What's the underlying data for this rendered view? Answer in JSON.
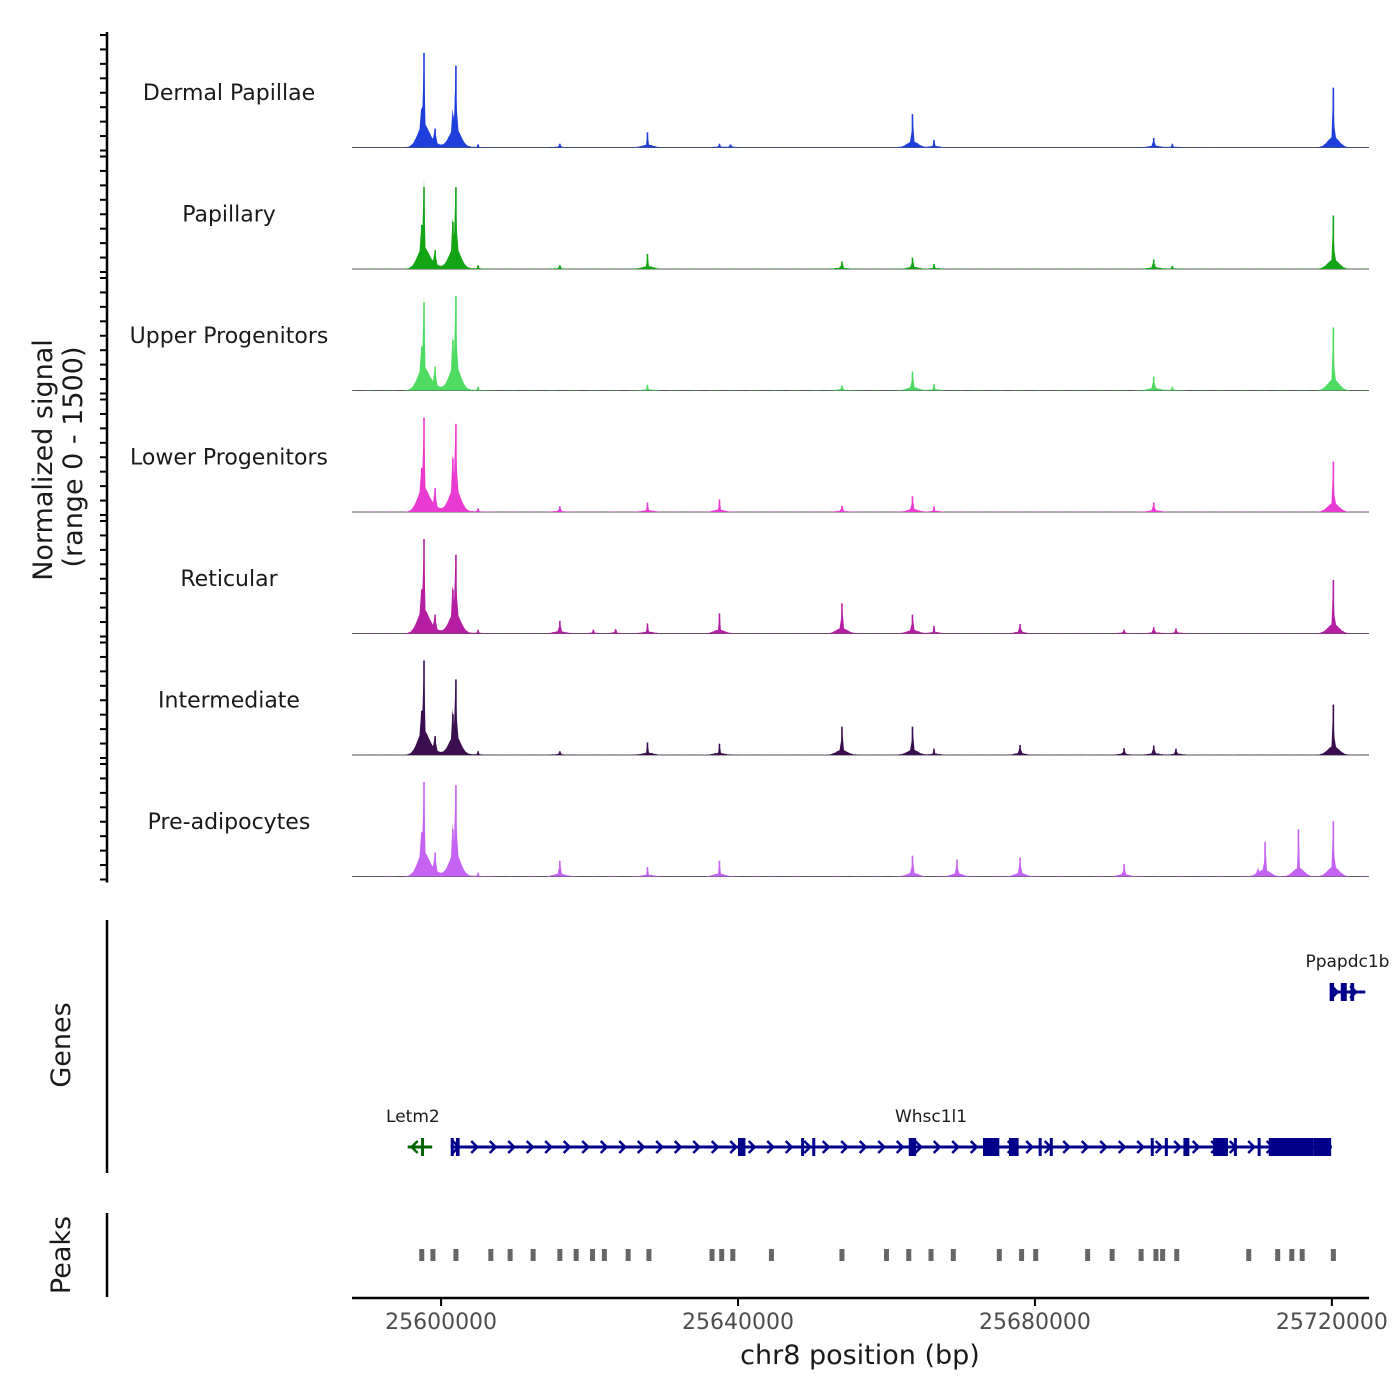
{
  "chart_data": {
    "type": "area",
    "title": "",
    "chromosome": "chr8",
    "xlabel": "chr8 position (bp)",
    "xlim": [
      25588000,
      25725000
    ],
    "x_ticks": [
      25600000,
      25640000,
      25680000,
      25720000
    ],
    "x_tick_labels": [
      "25600000",
      "25640000",
      "25680000",
      "25720000"
    ],
    "signal_axis_label": "Normalized signal\n(range 0 - 1500)",
    "signal_range": [
      0,
      1500
    ],
    "genes_label": "Genes",
    "peaks_label": "Peaks",
    "tracks": [
      {
        "name": "Dermal Papillae",
        "color": "#1f3fdb",
        "peaks": [
          {
            "pos": 25597700,
            "value": 1500
          },
          {
            "pos": 25597400,
            "value": 600
          },
          {
            "pos": 25599200,
            "value": 300
          },
          {
            "pos": 25602000,
            "value": 1300
          },
          {
            "pos": 25601600,
            "value": 500
          },
          {
            "pos": 25605000,
            "value": 50
          },
          {
            "pos": 25616000,
            "value": 60
          },
          {
            "pos": 25627800,
            "value": 240
          },
          {
            "pos": 25637500,
            "value": 60
          },
          {
            "pos": 25639000,
            "value": 50
          },
          {
            "pos": 25663500,
            "value": 530
          },
          {
            "pos": 25666400,
            "value": 120
          },
          {
            "pos": 25696000,
            "value": 150
          },
          {
            "pos": 25698500,
            "value": 60
          },
          {
            "pos": 25720200,
            "value": 950
          }
        ]
      },
      {
        "name": "Papillary",
        "color": "#14a514",
        "peaks": [
          {
            "pos": 25597700,
            "value": 1300
          },
          {
            "pos": 25597400,
            "value": 700
          },
          {
            "pos": 25599200,
            "value": 300
          },
          {
            "pos": 25602000,
            "value": 1300
          },
          {
            "pos": 25601600,
            "value": 750
          },
          {
            "pos": 25605000,
            "value": 60
          },
          {
            "pos": 25616000,
            "value": 60
          },
          {
            "pos": 25627800,
            "value": 240
          },
          {
            "pos": 25654000,
            "value": 120
          },
          {
            "pos": 25663500,
            "value": 180
          },
          {
            "pos": 25666400,
            "value": 80
          },
          {
            "pos": 25696000,
            "value": 150
          },
          {
            "pos": 25698500,
            "value": 50
          },
          {
            "pos": 25720200,
            "value": 850
          }
        ]
      },
      {
        "name": "Upper Progenitors",
        "color": "#4fdb62",
        "peaks": [
          {
            "pos": 25597700,
            "value": 1400
          },
          {
            "pos": 25597400,
            "value": 700
          },
          {
            "pos": 25599200,
            "value": 380
          },
          {
            "pos": 25602000,
            "value": 1500
          },
          {
            "pos": 25601600,
            "value": 800
          },
          {
            "pos": 25605000,
            "value": 60
          },
          {
            "pos": 25627800,
            "value": 90
          },
          {
            "pos": 25654000,
            "value": 80
          },
          {
            "pos": 25663500,
            "value": 300
          },
          {
            "pos": 25666400,
            "value": 100
          },
          {
            "pos": 25696000,
            "value": 220
          },
          {
            "pos": 25698500,
            "value": 60
          },
          {
            "pos": 25720200,
            "value": 1000
          }
        ]
      },
      {
        "name": "Lower Progenitors",
        "color": "#e93ad2",
        "peaks": [
          {
            "pos": 25597700,
            "value": 1500
          },
          {
            "pos": 25597400,
            "value": 700
          },
          {
            "pos": 25599200,
            "value": 380
          },
          {
            "pos": 25602000,
            "value": 1400
          },
          {
            "pos": 25601600,
            "value": 850
          },
          {
            "pos": 25605000,
            "value": 60
          },
          {
            "pos": 25616000,
            "value": 90
          },
          {
            "pos": 25627800,
            "value": 150
          },
          {
            "pos": 25637500,
            "value": 200
          },
          {
            "pos": 25654000,
            "value": 100
          },
          {
            "pos": 25663500,
            "value": 250
          },
          {
            "pos": 25666400,
            "value": 90
          },
          {
            "pos": 25696000,
            "value": 150
          },
          {
            "pos": 25720200,
            "value": 800
          }
        ]
      },
      {
        "name": "Reticular",
        "color": "#b51ea2",
        "peaks": [
          {
            "pos": 25597700,
            "value": 1500
          },
          {
            "pos": 25597400,
            "value": 700
          },
          {
            "pos": 25599200,
            "value": 300
          },
          {
            "pos": 25602000,
            "value": 1250
          },
          {
            "pos": 25601600,
            "value": 700
          },
          {
            "pos": 25605000,
            "value": 60
          },
          {
            "pos": 25616000,
            "value": 200
          },
          {
            "pos": 25620500,
            "value": 60
          },
          {
            "pos": 25623500,
            "value": 70
          },
          {
            "pos": 25627800,
            "value": 160
          },
          {
            "pos": 25637500,
            "value": 320
          },
          {
            "pos": 25654000,
            "value": 480
          },
          {
            "pos": 25663500,
            "value": 300
          },
          {
            "pos": 25666400,
            "value": 120
          },
          {
            "pos": 25678000,
            "value": 150
          },
          {
            "pos": 25692000,
            "value": 60
          },
          {
            "pos": 25696000,
            "value": 100
          },
          {
            "pos": 25699000,
            "value": 80
          },
          {
            "pos": 25720200,
            "value": 850
          }
        ]
      },
      {
        "name": "Intermediate",
        "color": "#3b0f4f",
        "peaks": [
          {
            "pos": 25597700,
            "value": 1500
          },
          {
            "pos": 25597400,
            "value": 700
          },
          {
            "pos": 25599200,
            "value": 300
          },
          {
            "pos": 25602000,
            "value": 1200
          },
          {
            "pos": 25601600,
            "value": 650
          },
          {
            "pos": 25605000,
            "value": 60
          },
          {
            "pos": 25616000,
            "value": 60
          },
          {
            "pos": 25627800,
            "value": 200
          },
          {
            "pos": 25637500,
            "value": 180
          },
          {
            "pos": 25654000,
            "value": 450
          },
          {
            "pos": 25663500,
            "value": 450
          },
          {
            "pos": 25666400,
            "value": 100
          },
          {
            "pos": 25678000,
            "value": 160
          },
          {
            "pos": 25692000,
            "value": 110
          },
          {
            "pos": 25696000,
            "value": 150
          },
          {
            "pos": 25699000,
            "value": 100
          },
          {
            "pos": 25720200,
            "value": 800
          }
        ]
      },
      {
        "name": "Pre-adipocytes",
        "color": "#c463f2",
        "peaks": [
          {
            "pos": 25597700,
            "value": 1500
          },
          {
            "pos": 25597400,
            "value": 700
          },
          {
            "pos": 25599200,
            "value": 380
          },
          {
            "pos": 25602000,
            "value": 1450
          },
          {
            "pos": 25601600,
            "value": 750
          },
          {
            "pos": 25605000,
            "value": 60
          },
          {
            "pos": 25616000,
            "value": 250
          },
          {
            "pos": 25627800,
            "value": 150
          },
          {
            "pos": 25637500,
            "value": 250
          },
          {
            "pos": 25663500,
            "value": 330
          },
          {
            "pos": 25669500,
            "value": 270
          },
          {
            "pos": 25678000,
            "value": 300
          },
          {
            "pos": 25692000,
            "value": 200
          },
          {
            "pos": 25711000,
            "value": 550
          },
          {
            "pos": 25715500,
            "value": 750
          },
          {
            "pos": 25710000,
            "value": 100
          },
          {
            "pos": 25720200,
            "value": 880
          }
        ]
      }
    ],
    "genes": [
      {
        "name": "Ppapdc1b",
        "color": "#00008b",
        "strand": "+",
        "start": 25719700,
        "end": 25724500,
        "row": 1,
        "exons": [
          [
            25719700,
            25720300
          ],
          [
            25721200,
            25722000
          ],
          [
            25722500,
            25723000
          ]
        ]
      },
      {
        "name": "Letm2",
        "color": "#006400",
        "strand": "-",
        "start": 25595500,
        "end": 25598800,
        "row": 2,
        "exons": [
          [
            25597300,
            25597700
          ]
        ]
      },
      {
        "name": "Whsc1l1",
        "color": "#00008b",
        "strand": "+",
        "start": 25601300,
        "end": 25720000,
        "row": 2,
        "exons": [
          [
            25601300,
            25601700
          ],
          [
            25602000,
            25602500
          ],
          [
            25640000,
            25641000
          ],
          [
            25648500,
            25648700
          ],
          [
            25650000,
            25650200
          ],
          [
            25663000,
            25664000
          ],
          [
            25673000,
            25675200
          ],
          [
            25676500,
            25677800
          ],
          [
            25680500,
            25680800
          ],
          [
            25682000,
            25682300
          ],
          [
            25695600,
            25695900
          ],
          [
            25697500,
            25697700
          ],
          [
            25700000,
            25700800
          ],
          [
            25704000,
            25706000
          ],
          [
            25706800,
            25707000
          ],
          [
            25710000,
            25710300
          ],
          [
            25711500,
            25717500
          ],
          [
            25717500,
            25719900
          ]
        ]
      }
    ],
    "peak_regions": [
      25597400,
      25598900,
      25602000,
      25606700,
      25609300,
      25612400,
      25616000,
      25618200,
      25620400,
      25622000,
      25625200,
      25628000,
      25636500,
      25637800,
      25639300,
      25644500,
      25654000,
      25660000,
      25663000,
      25666000,
      25669000,
      25675200,
      25678200,
      25680100,
      25687100,
      25690400,
      25694300,
      25696300,
      25697200,
      25699100,
      25708800,
      25712700,
      25714600,
      25716000,
      25720200
    ]
  }
}
